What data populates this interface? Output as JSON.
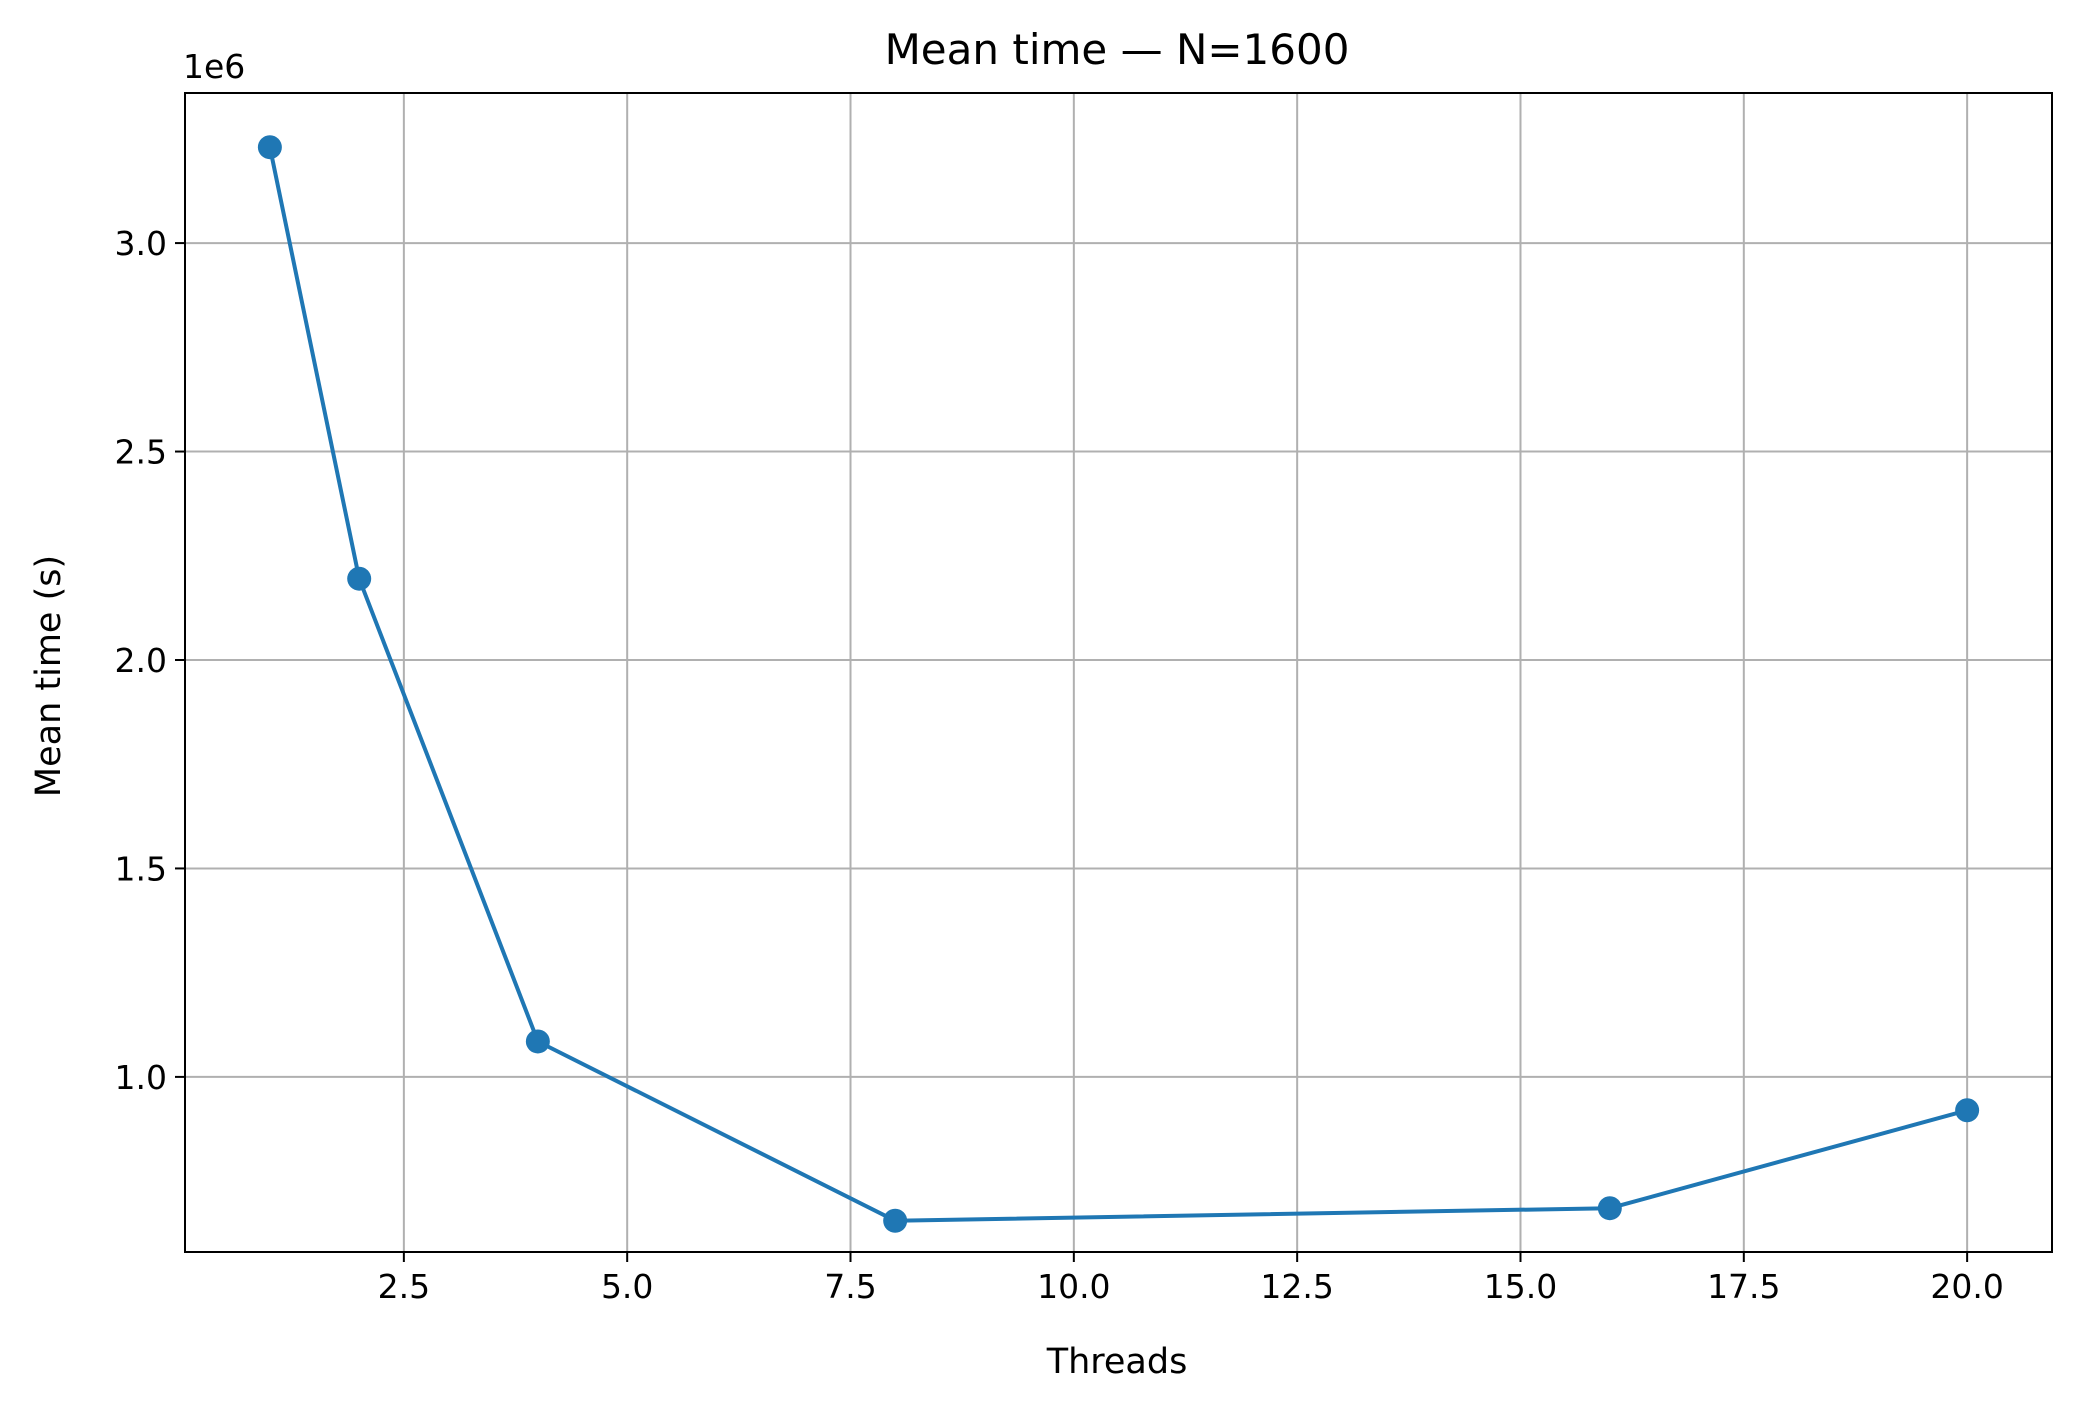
{
  "chart_data": {
    "type": "line",
    "title": "Mean time — N=1600",
    "xlabel": "Threads",
    "ylabel": "Mean time (s)",
    "y_offset_text": "1e6",
    "xlim": [
      0.05,
      20.95
    ],
    "ylim": [
      580000,
      3360000
    ],
    "x_ticks": [
      2.5,
      5.0,
      7.5,
      10.0,
      12.5,
      15.0,
      17.5,
      20.0
    ],
    "x_tick_labels": [
      "2.5",
      "5.0",
      "7.5",
      "10.0",
      "12.5",
      "15.0",
      "17.5",
      "20.0"
    ],
    "y_ticks": [
      1000000,
      1500000,
      2000000,
      2500000,
      3000000
    ],
    "y_tick_labels": [
      "1.0",
      "1.5",
      "2.0",
      "2.5",
      "3.0"
    ],
    "grid": true,
    "marker": "circle",
    "series": [
      {
        "color": "#1f77b4",
        "x": [
          1,
          2,
          4,
          8,
          16,
          20
        ],
        "y": [
          3230000,
          2195000,
          1085000,
          655000,
          685000,
          920000
        ]
      }
    ]
  }
}
